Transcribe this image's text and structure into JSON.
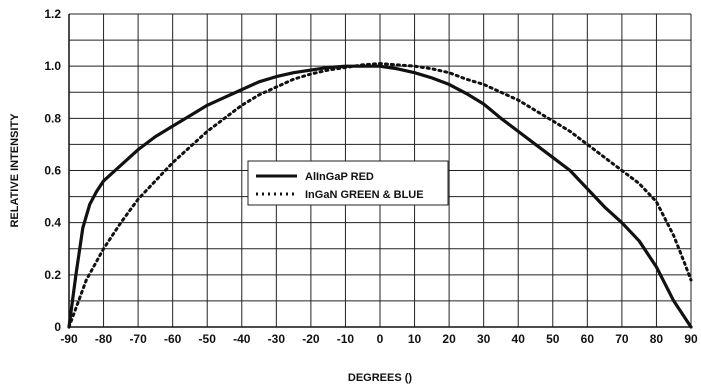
{
  "chart_data": {
    "type": "line",
    "title": "",
    "xlabel": "DEGREES ()",
    "ylabel": "RELATIVE INTENSITY",
    "xlim": [
      -90,
      90
    ],
    "ylim": [
      0,
      1.2
    ],
    "x_ticks": [
      -90,
      -80,
      -70,
      -60,
      -50,
      -40,
      -30,
      -20,
      -10,
      0,
      10,
      20,
      30,
      40,
      50,
      60,
      70,
      80,
      90
    ],
    "y_ticks": [
      0,
      0.2,
      0.4,
      0.6,
      0.8,
      1.0,
      1.2
    ],
    "x_tick_labels": [
      "-90",
      "-80",
      "-70",
      "-60",
      "-50",
      "-40",
      "-30",
      "-20",
      "-10",
      "0",
      "10",
      "20",
      "30",
      "40",
      "50",
      "60",
      "70",
      "80",
      "90"
    ],
    "y_tick_labels": [
      "0",
      "0.2",
      "0.4",
      "0.6",
      "0.8",
      "1.0",
      "1.2"
    ],
    "grid": true,
    "legend_position": "center",
    "series": [
      {
        "name": "AlInGaP RED",
        "style": "solid",
        "color": "#111111",
        "x": [
          -90,
          -88,
          -86,
          -84,
          -82,
          -80,
          -75,
          -70,
          -65,
          -60,
          -55,
          -50,
          -45,
          -40,
          -35,
          -30,
          -25,
          -20,
          -15,
          -10,
          -5,
          0,
          5,
          10,
          15,
          20,
          25,
          30,
          35,
          40,
          45,
          50,
          55,
          60,
          65,
          70,
          75,
          80,
          85,
          90
        ],
        "y": [
          0.0,
          0.2,
          0.38,
          0.47,
          0.52,
          0.56,
          0.62,
          0.68,
          0.73,
          0.77,
          0.81,
          0.85,
          0.88,
          0.91,
          0.94,
          0.96,
          0.975,
          0.985,
          0.995,
          1.0,
          1.0,
          1.0,
          0.99,
          0.975,
          0.955,
          0.93,
          0.895,
          0.855,
          0.8,
          0.75,
          0.7,
          0.65,
          0.6,
          0.53,
          0.46,
          0.4,
          0.33,
          0.23,
          0.1,
          0.0
        ]
      },
      {
        "name": "InGaN GREEN & BLUE",
        "style": "dotted",
        "color": "#111111",
        "x": [
          -90,
          -85,
          -80,
          -75,
          -70,
          -65,
          -60,
          -55,
          -50,
          -45,
          -40,
          -35,
          -30,
          -25,
          -20,
          -15,
          -10,
          -5,
          0,
          5,
          10,
          15,
          20,
          25,
          30,
          35,
          40,
          45,
          50,
          55,
          60,
          65,
          70,
          75,
          80,
          85,
          88,
          90
        ],
        "y": [
          0.0,
          0.18,
          0.3,
          0.4,
          0.49,
          0.56,
          0.63,
          0.69,
          0.75,
          0.8,
          0.85,
          0.89,
          0.92,
          0.95,
          0.97,
          0.985,
          0.995,
          1.005,
          1.01,
          1.005,
          1.0,
          0.99,
          0.975,
          0.95,
          0.93,
          0.9,
          0.87,
          0.83,
          0.79,
          0.75,
          0.7,
          0.65,
          0.6,
          0.55,
          0.48,
          0.35,
          0.25,
          0.18
        ]
      }
    ]
  }
}
